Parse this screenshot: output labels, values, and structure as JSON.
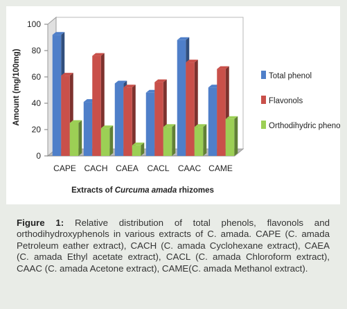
{
  "chart_data": {
    "type": "bar",
    "ylabel": "Amount (mg/100mg)",
    "xlabel_prefix": "Extracts of ",
    "xlabel_italic": "Curcuma amada",
    "xlabel_suffix": " rhizomes",
    "ylim": [
      0,
      100
    ],
    "yticks": [
      0,
      20,
      40,
      60,
      80,
      100
    ],
    "categories": [
      "CAPE",
      "CACH",
      "CAEA",
      "CACL",
      "CAAC",
      "CAME"
    ],
    "series": [
      {
        "name": "Total phenol",
        "color": "#4f7fc9",
        "values": [
          92,
          41,
          55,
          48,
          88,
          52
        ]
      },
      {
        "name": "Flavonols",
        "color": "#c9504a",
        "values": [
          61,
          76,
          52,
          56,
          71,
          66
        ]
      },
      {
        "name": "Orthodihydric phenol",
        "color": "#9ccf55",
        "values": [
          25,
          21,
          8,
          22,
          22,
          28
        ]
      }
    ],
    "legend_position": "right",
    "style": "3d"
  },
  "caption": {
    "label": "Figure 1:",
    "text": " Relative distribution of total phenols, flavonols and orthodihydroxyphenols in various extracts of C. amada. CAPE (C. amada Petroleum eather extract), CACH (C. amada Cyclohexane extract), CAEA (C. amada Ethyl acetate extract), CACL (C. amada Chloroform extract), CAAC (C. amada Acetone extract), CAME(C. amada Methanol extract)."
  }
}
